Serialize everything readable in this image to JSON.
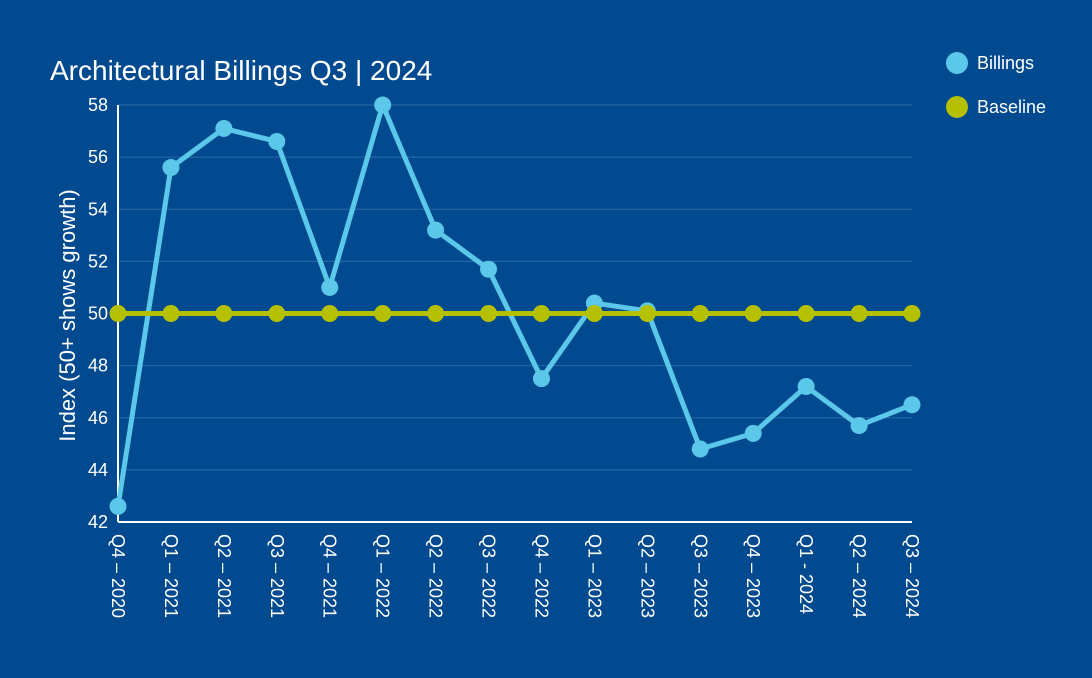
{
  "chart_data": {
    "type": "line",
    "title": "Architectural Billings Q3 | 2024",
    "ylabel": "Index (50+ shows growth)",
    "xlabel": "",
    "ylim": [
      42,
      58
    ],
    "yticks": [
      42,
      44,
      46,
      48,
      50,
      52,
      54,
      56,
      58
    ],
    "grid": true,
    "legend_position": "top-right",
    "categories": [
      "Q4 – 2020",
      "Q1 – 2021",
      "Q2 – 2021",
      "Q3 – 2021",
      "Q4 – 2021",
      "Q1 – 2022",
      "Q2 – 2022",
      "Q3 – 2022",
      "Q4 – 2022",
      "Q1 – 2023",
      "Q2 – 2023",
      "Q3 – 2023",
      "Q4 – 2023",
      "Q1 - 2024",
      "Q2 – 2024",
      "Q3 – 2024"
    ],
    "series": [
      {
        "name": "Billings",
        "color": "#5bc8ea",
        "values": [
          42.6,
          55.6,
          57.1,
          56.6,
          51.0,
          58.0,
          53.2,
          51.7,
          47.5,
          50.4,
          50.1,
          44.8,
          45.4,
          47.2,
          45.7,
          46.5
        ]
      },
      {
        "name": "Baseline",
        "color": "#b5c000",
        "values": [
          50,
          50,
          50,
          50,
          50,
          50,
          50,
          50,
          50,
          50,
          50,
          50,
          50,
          50,
          50,
          50
        ]
      }
    ]
  },
  "colors": {
    "background": "#024a8f",
    "grid": "#2d6aa6",
    "axis": "#ffffff",
    "text": "#ffffff"
  }
}
